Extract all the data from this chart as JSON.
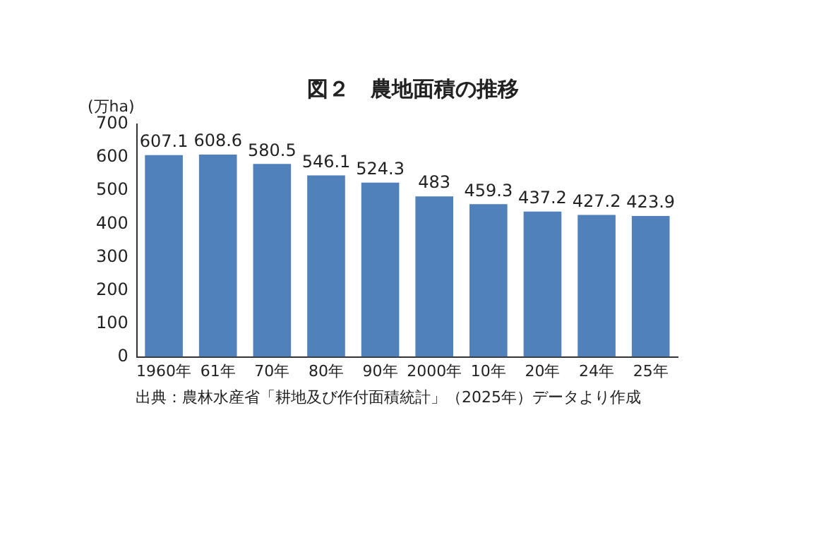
{
  "chart_data": {
    "type": "bar",
    "title": "図２　農地面積の推移",
    "ylabel": "(万ha)",
    "categories": [
      "1960年",
      "61年",
      "70年",
      "80年",
      "90年",
      "2000年",
      "10年",
      "20年",
      "24年",
      "25年"
    ],
    "values": [
      607.1,
      608.6,
      580.5,
      546.1,
      524.3,
      483,
      459.3,
      437.2,
      427.2,
      423.9
    ],
    "color": "#5181bb",
    "ylim": [
      0,
      700
    ],
    "yticks": [
      0,
      100,
      200,
      300,
      400,
      500,
      600,
      700
    ],
    "grid": false,
    "data_labels": true,
    "annotations": [
      "出典：農林水産省「耕地及び作付面積統計」（2025年）データより作成"
    ]
  }
}
